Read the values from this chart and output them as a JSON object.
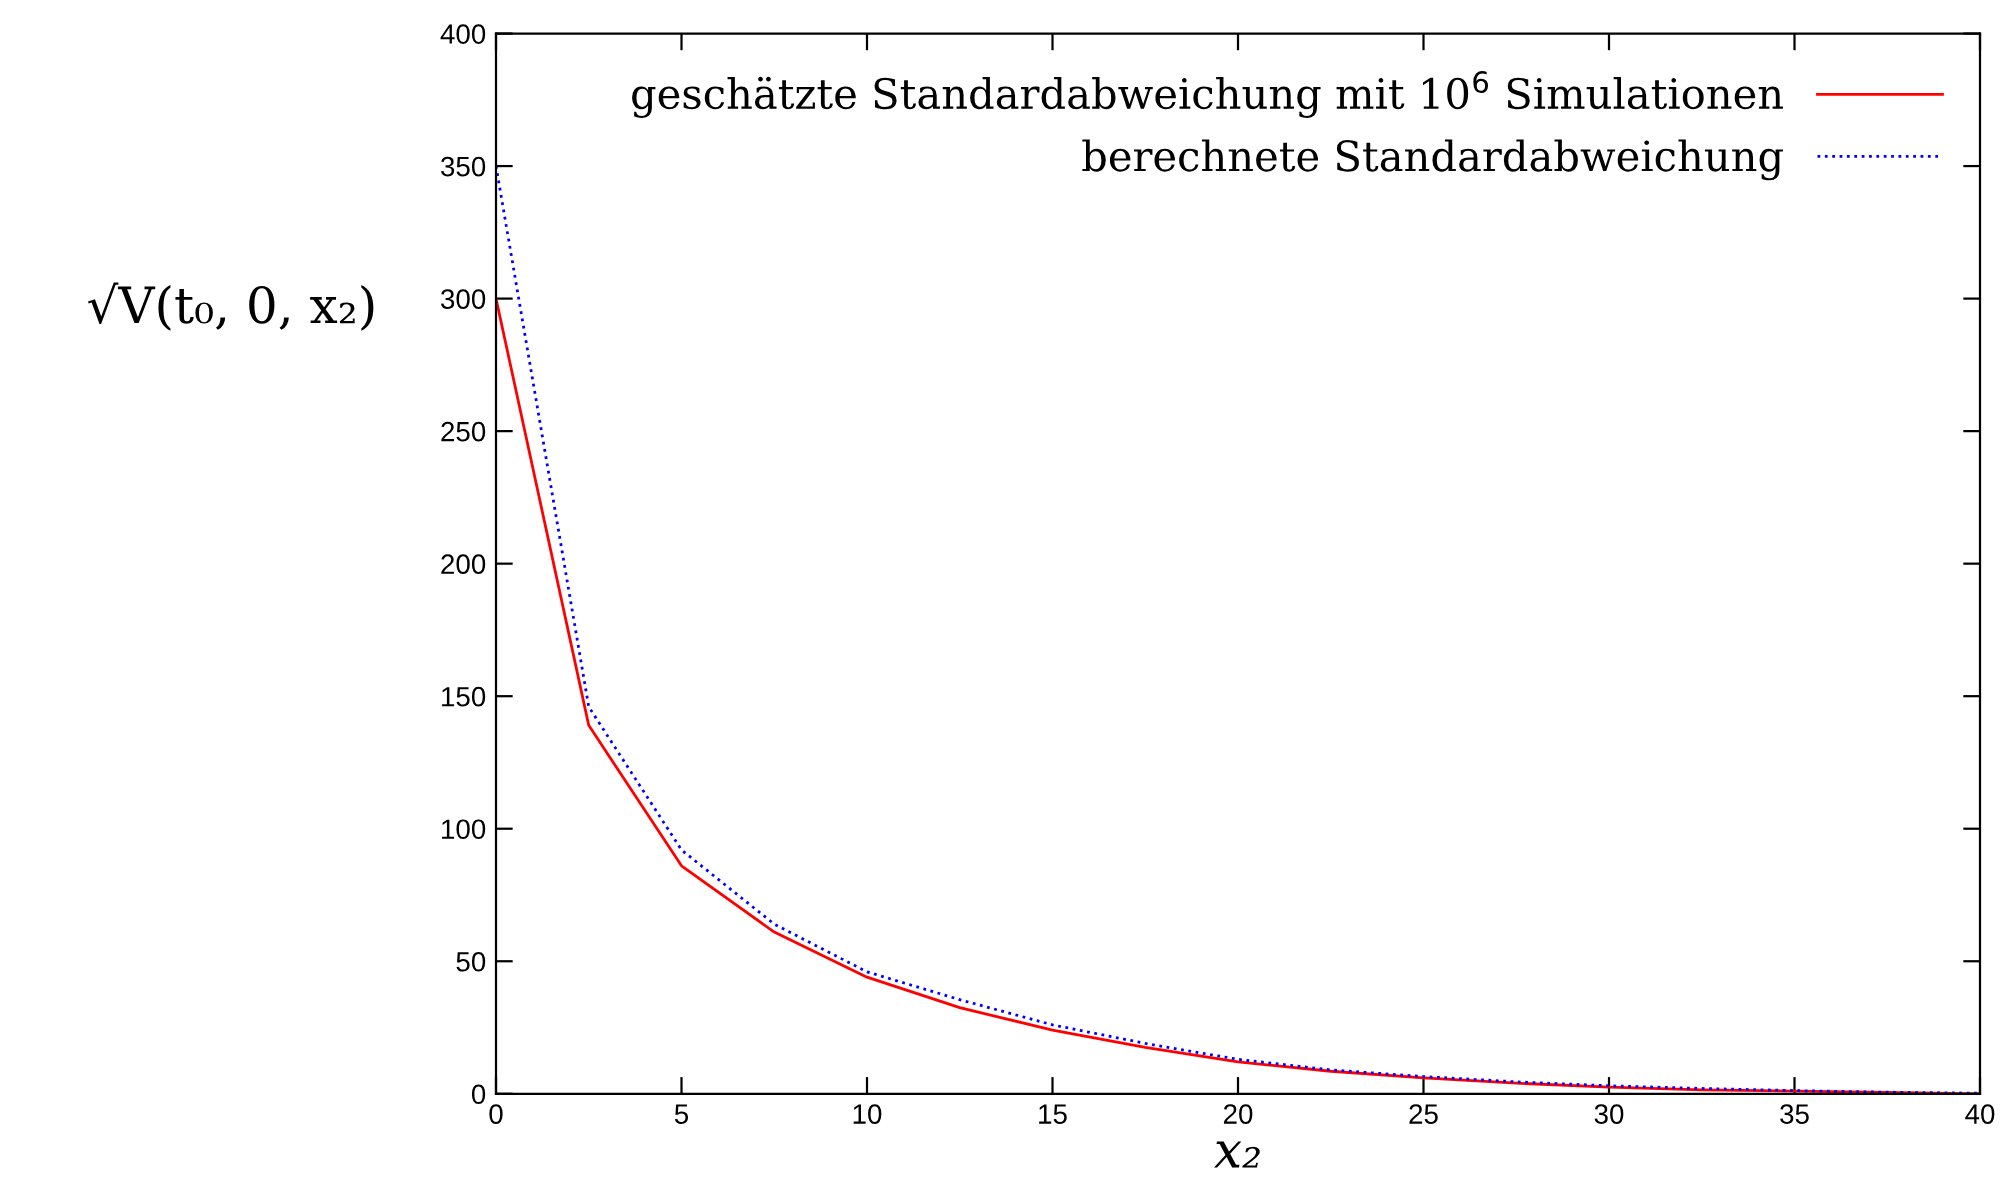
{
  "chart_data": {
    "type": "line",
    "xlabel": "x₂",
    "ylabel": "√V(t₀, 0, x₂)",
    "x": [
      0,
      2.5,
      5,
      7.5,
      10,
      12.5,
      15,
      17.5,
      20,
      22.5,
      25,
      27.5,
      30,
      32.5,
      35,
      37.5,
      40
    ],
    "series": [
      {
        "name": "geschätzte Standardabweichung mit 10$^{6}$ Simulationen",
        "color": "#ff0000",
        "line_style": "solid",
        "values": [
          300,
          139,
          86,
          61,
          44,
          32.5,
          24,
          17.5,
          12,
          8.5,
          6,
          4,
          2.5,
          1.5,
          1,
          0.5,
          0
        ]
      },
      {
        "name": "berechnete Standardabweichung",
        "color": "#0000ff",
        "line_style": "dotted",
        "values": [
          350,
          146,
          92,
          64,
          46,
          35.5,
          26,
          19,
          13,
          9,
          6.5,
          4.5,
          3,
          2,
          1.2,
          0.6,
          0.2
        ]
      }
    ],
    "xlim": [
      0,
      40
    ],
    "xticks": [
      0,
      5,
      10,
      15,
      20,
      25,
      30,
      35,
      40
    ],
    "ylim": [
      0,
      400
    ],
    "yticks": [
      0,
      50,
      100,
      150,
      200,
      250,
      300,
      350,
      400
    ],
    "grid": false,
    "legend": "top right",
    "marker": "none"
  }
}
